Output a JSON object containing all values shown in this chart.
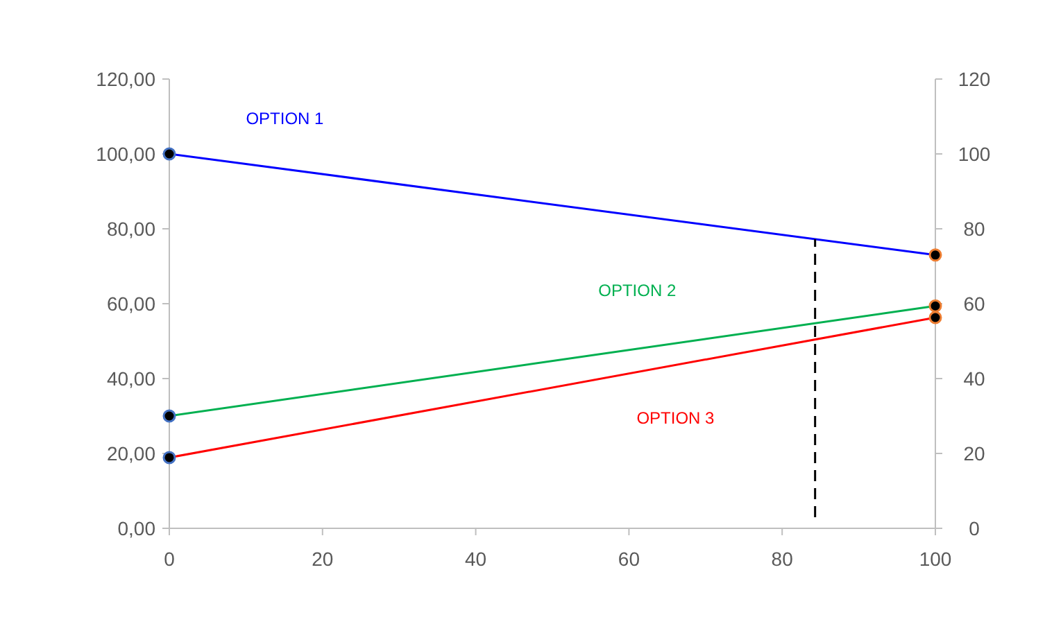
{
  "chart_data": {
    "type": "line",
    "x": [
      0,
      100
    ],
    "series": [
      {
        "name": "OPTION 1",
        "color": "#0000ff",
        "values": [
          100,
          73
        ]
      },
      {
        "name": "OPTION 2",
        "color": "#00b050",
        "values": [
          30,
          59.4
        ]
      },
      {
        "name": "OPTION 3",
        "color": "#ff0000",
        "values": [
          18.9,
          56.3
        ]
      }
    ],
    "xlim": [
      0,
      100
    ],
    "xticks": [
      0,
      20,
      40,
      60,
      80,
      100
    ],
    "ylim": [
      0,
      120
    ],
    "yticks": [
      {
        "value": 0,
        "label": "0,00"
      },
      {
        "value": 20,
        "label": "20,00"
      },
      {
        "value": 40,
        "label": "40,00"
      },
      {
        "value": 60,
        "label": "60,00"
      },
      {
        "value": 80,
        "label": "80,00"
      },
      {
        "value": 100,
        "label": "100,00"
      },
      {
        "value": 120,
        "label": "120,00"
      }
    ],
    "y2lim": [
      0,
      120
    ],
    "y2ticks": [
      0,
      20,
      40,
      60,
      80,
      100,
      120
    ],
    "ref_lines": [
      {
        "axis": "x",
        "value": 84.3,
        "color": "#000000",
        "line_style": "dashed"
      }
    ],
    "marker": "circle",
    "line_style": "solid",
    "grid": false
  }
}
